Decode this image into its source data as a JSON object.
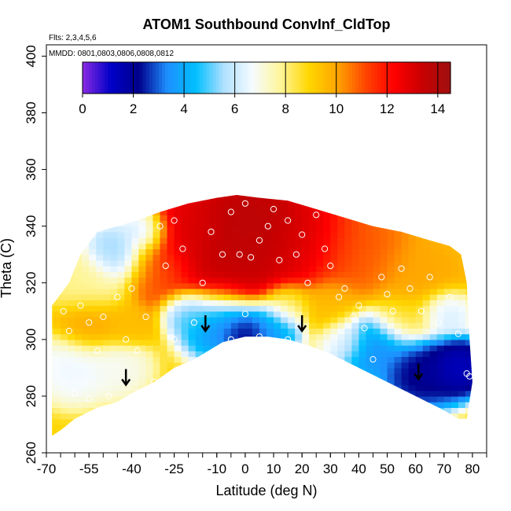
{
  "chart_data": {
    "type": "heatmap",
    "title": "ATOM1 Southbound ConvInf_CldTop",
    "subtitle_flights": "Flts: 2,3,4,5,6",
    "subtitle_dates": "MMDD: 0801,0803,0806,0808,0812",
    "xlabel": "Latitude (deg N)",
    "ylabel": "Theta (C)",
    "xlim": [
      -70,
      85
    ],
    "ylim": [
      260,
      404
    ],
    "x_ticks": [
      -70,
      -55,
      -40,
      -25,
      -10,
      0,
      10,
      20,
      30,
      40,
      50,
      60,
      70,
      80
    ],
    "y_ticks": [
      260,
      280,
      300,
      320,
      340,
      360,
      380,
      400
    ],
    "colorbar": {
      "min": 0,
      "max": 14.5,
      "ticks": [
        0,
        2,
        4,
        6,
        8,
        10,
        12,
        14
      ],
      "colors": [
        "#8a2be2",
        "#0000c8",
        "#00008b",
        "#1e90ff",
        "#00bfff",
        "#b0e0ff",
        "#f5fbff",
        "#fff59a",
        "#ffd700",
        "#ffa500",
        "#ff4500",
        "#ff0000",
        "#c80000",
        "#a01010"
      ]
    },
    "field": {
      "lower_boundary": [
        [
          -68,
          266
        ],
        [
          -65,
          268
        ],
        [
          -60,
          272
        ],
        [
          -52,
          276
        ],
        [
          -45,
          278
        ],
        [
          -40,
          281
        ],
        [
          -32,
          285
        ],
        [
          -25,
          290
        ],
        [
          -18,
          293
        ],
        [
          -13,
          296
        ],
        [
          -8,
          299
        ],
        [
          0,
          301
        ],
        [
          8,
          301
        ],
        [
          15,
          300
        ],
        [
          22,
          298
        ],
        [
          30,
          295
        ],
        [
          40,
          290
        ],
        [
          50,
          285
        ],
        [
          60,
          280
        ],
        [
          70,
          275
        ],
        [
          75,
          272
        ],
        [
          78,
          272
        ]
      ],
      "upper_boundary": [
        [
          -68,
          312
        ],
        [
          -62,
          320
        ],
        [
          -58,
          330
        ],
        [
          -52,
          338
        ],
        [
          -45,
          340
        ],
        [
          -38,
          342
        ],
        [
          -30,
          345
        ],
        [
          -20,
          348
        ],
        [
          -10,
          350
        ],
        [
          -3,
          351
        ],
        [
          5,
          350
        ],
        [
          15,
          349
        ],
        [
          25,
          346
        ],
        [
          35,
          343
        ],
        [
          45,
          340
        ],
        [
          55,
          338
        ],
        [
          65,
          335
        ],
        [
          72,
          333
        ],
        [
          76,
          330
        ],
        [
          78,
          320
        ],
        [
          79,
          300
        ],
        [
          80,
          285
        ]
      ],
      "blobs": [
        {
          "x": -10,
          "y": 330,
          "v": 13.6,
          "r": 22
        },
        {
          "x": 3,
          "y": 340,
          "v": 14.0,
          "r": 18
        },
        {
          "x": 20,
          "y": 335,
          "v": 13.0,
          "r": 16
        },
        {
          "x": -20,
          "y": 338,
          "v": 12.8,
          "r": 12
        },
        {
          "x": -30,
          "y": 325,
          "v": 10.6,
          "r": 12
        },
        {
          "x": 40,
          "y": 330,
          "v": 11.0,
          "r": 16
        },
        {
          "x": 60,
          "y": 322,
          "v": 10.0,
          "r": 14
        },
        {
          "x": -55,
          "y": 320,
          "v": 7.8,
          "r": 12
        },
        {
          "x": -45,
          "y": 330,
          "v": 5.0,
          "r": 10
        },
        {
          "x": -35,
          "y": 338,
          "v": 5.6,
          "r": 8
        },
        {
          "x": -55,
          "y": 305,
          "v": 10.0,
          "r": 10
        },
        {
          "x": -42,
          "y": 305,
          "v": 9.5,
          "r": 8
        },
        {
          "x": -60,
          "y": 290,
          "v": 6.5,
          "r": 12
        },
        {
          "x": -45,
          "y": 290,
          "v": 6.8,
          "r": 10
        },
        {
          "x": -10,
          "y": 306,
          "v": 3.0,
          "r": 12
        },
        {
          "x": 0,
          "y": 303,
          "v": 1.5,
          "r": 9
        },
        {
          "x": 10,
          "y": 305,
          "v": 3.5,
          "r": 9
        },
        {
          "x": -20,
          "y": 310,
          "v": 4.5,
          "r": 8
        },
        {
          "x": 15,
          "y": 312,
          "v": 8.2,
          "r": 8
        },
        {
          "x": 45,
          "y": 298,
          "v": 3.2,
          "r": 12
        },
        {
          "x": 62,
          "y": 288,
          "v": 1.8,
          "r": 12
        },
        {
          "x": 75,
          "y": 290,
          "v": 1.0,
          "r": 10
        },
        {
          "x": 70,
          "y": 310,
          "v": 6.0,
          "r": 8
        },
        {
          "x": 55,
          "y": 308,
          "v": 8.5,
          "r": 10
        },
        {
          "x": 30,
          "y": 312,
          "v": 9.5,
          "r": 10
        },
        {
          "x": 35,
          "y": 300,
          "v": 6.8,
          "r": 8
        }
      ],
      "base_value": 9.0
    },
    "observations": [
      [
        -67,
        293
      ],
      [
        -64,
        310
      ],
      [
        -62,
        303
      ],
      [
        -58,
        312
      ],
      [
        -55,
        306
      ],
      [
        -52,
        296
      ],
      [
        -50,
        308
      ],
      [
        -48,
        280
      ],
      [
        -45,
        315
      ],
      [
        -42,
        300
      ],
      [
        -40,
        318
      ],
      [
        -38,
        296
      ],
      [
        -35,
        308
      ],
      [
        -32,
        285
      ],
      [
        -30,
        340
      ],
      [
        -28,
        326
      ],
      [
        -25,
        342
      ],
      [
        -22,
        332
      ],
      [
        -18,
        306
      ],
      [
        -15,
        320
      ],
      [
        -12,
        338
      ],
      [
        -8,
        330
      ],
      [
        -5,
        345
      ],
      [
        -2,
        330
      ],
      [
        0,
        348
      ],
      [
        2,
        329
      ],
      [
        5,
        335
      ],
      [
        8,
        340
      ],
      [
        10,
        346
      ],
      [
        12,
        328
      ],
      [
        15,
        342
      ],
      [
        18,
        330
      ],
      [
        20,
        337
      ],
      [
        22,
        320
      ],
      [
        25,
        344
      ],
      [
        28,
        332
      ],
      [
        30,
        326
      ],
      [
        33,
        315
      ],
      [
        35,
        318
      ],
      [
        38,
        308
      ],
      [
        40,
        312
      ],
      [
        42,
        304
      ],
      [
        45,
        293
      ],
      [
        48,
        322
      ],
      [
        50,
        316
      ],
      [
        52,
        310
      ],
      [
        55,
        325
      ],
      [
        58,
        318
      ],
      [
        62,
        310
      ],
      [
        65,
        322
      ],
      [
        68,
        306
      ],
      [
        72,
        315
      ],
      [
        75,
        302
      ],
      [
        78,
        288
      ],
      [
        79,
        287
      ],
      [
        -60,
        281
      ],
      [
        -55,
        279
      ],
      [
        -25,
        300
      ],
      [
        -5,
        300
      ],
      [
        5,
        301
      ],
      [
        15,
        300
      ],
      [
        0,
        309
      ]
    ],
    "arrows": [
      [
        -42,
        284
      ],
      [
        -14,
        303
      ],
      [
        20,
        303
      ],
      [
        61,
        286
      ]
    ]
  }
}
